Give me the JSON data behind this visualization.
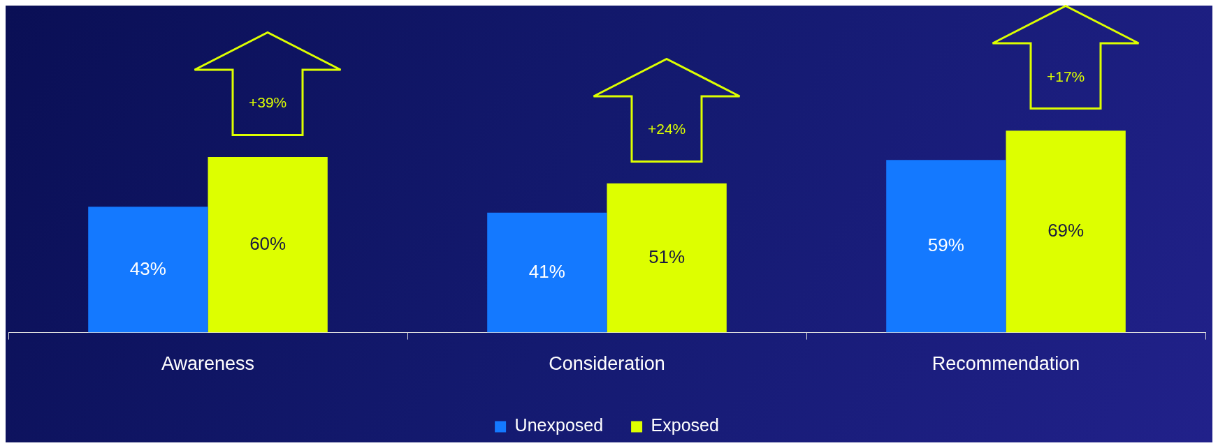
{
  "chart_data": {
    "type": "bar",
    "categories": [
      "Awareness",
      "Consideration",
      "Recommendation"
    ],
    "series": [
      {
        "name": "Unexposed",
        "color": "#1479ff",
        "values": [
          43,
          41,
          59
        ],
        "value_labels": [
          "43%",
          "41%",
          "59%"
        ]
      },
      {
        "name": "Exposed",
        "color": "#ddff00",
        "values": [
          60,
          51,
          69
        ],
        "value_labels": [
          "60%",
          "51%",
          "69%"
        ]
      }
    ],
    "annotations": [
      "+39%",
      "+24%",
      "+17%"
    ],
    "legend": "bottom"
  }
}
